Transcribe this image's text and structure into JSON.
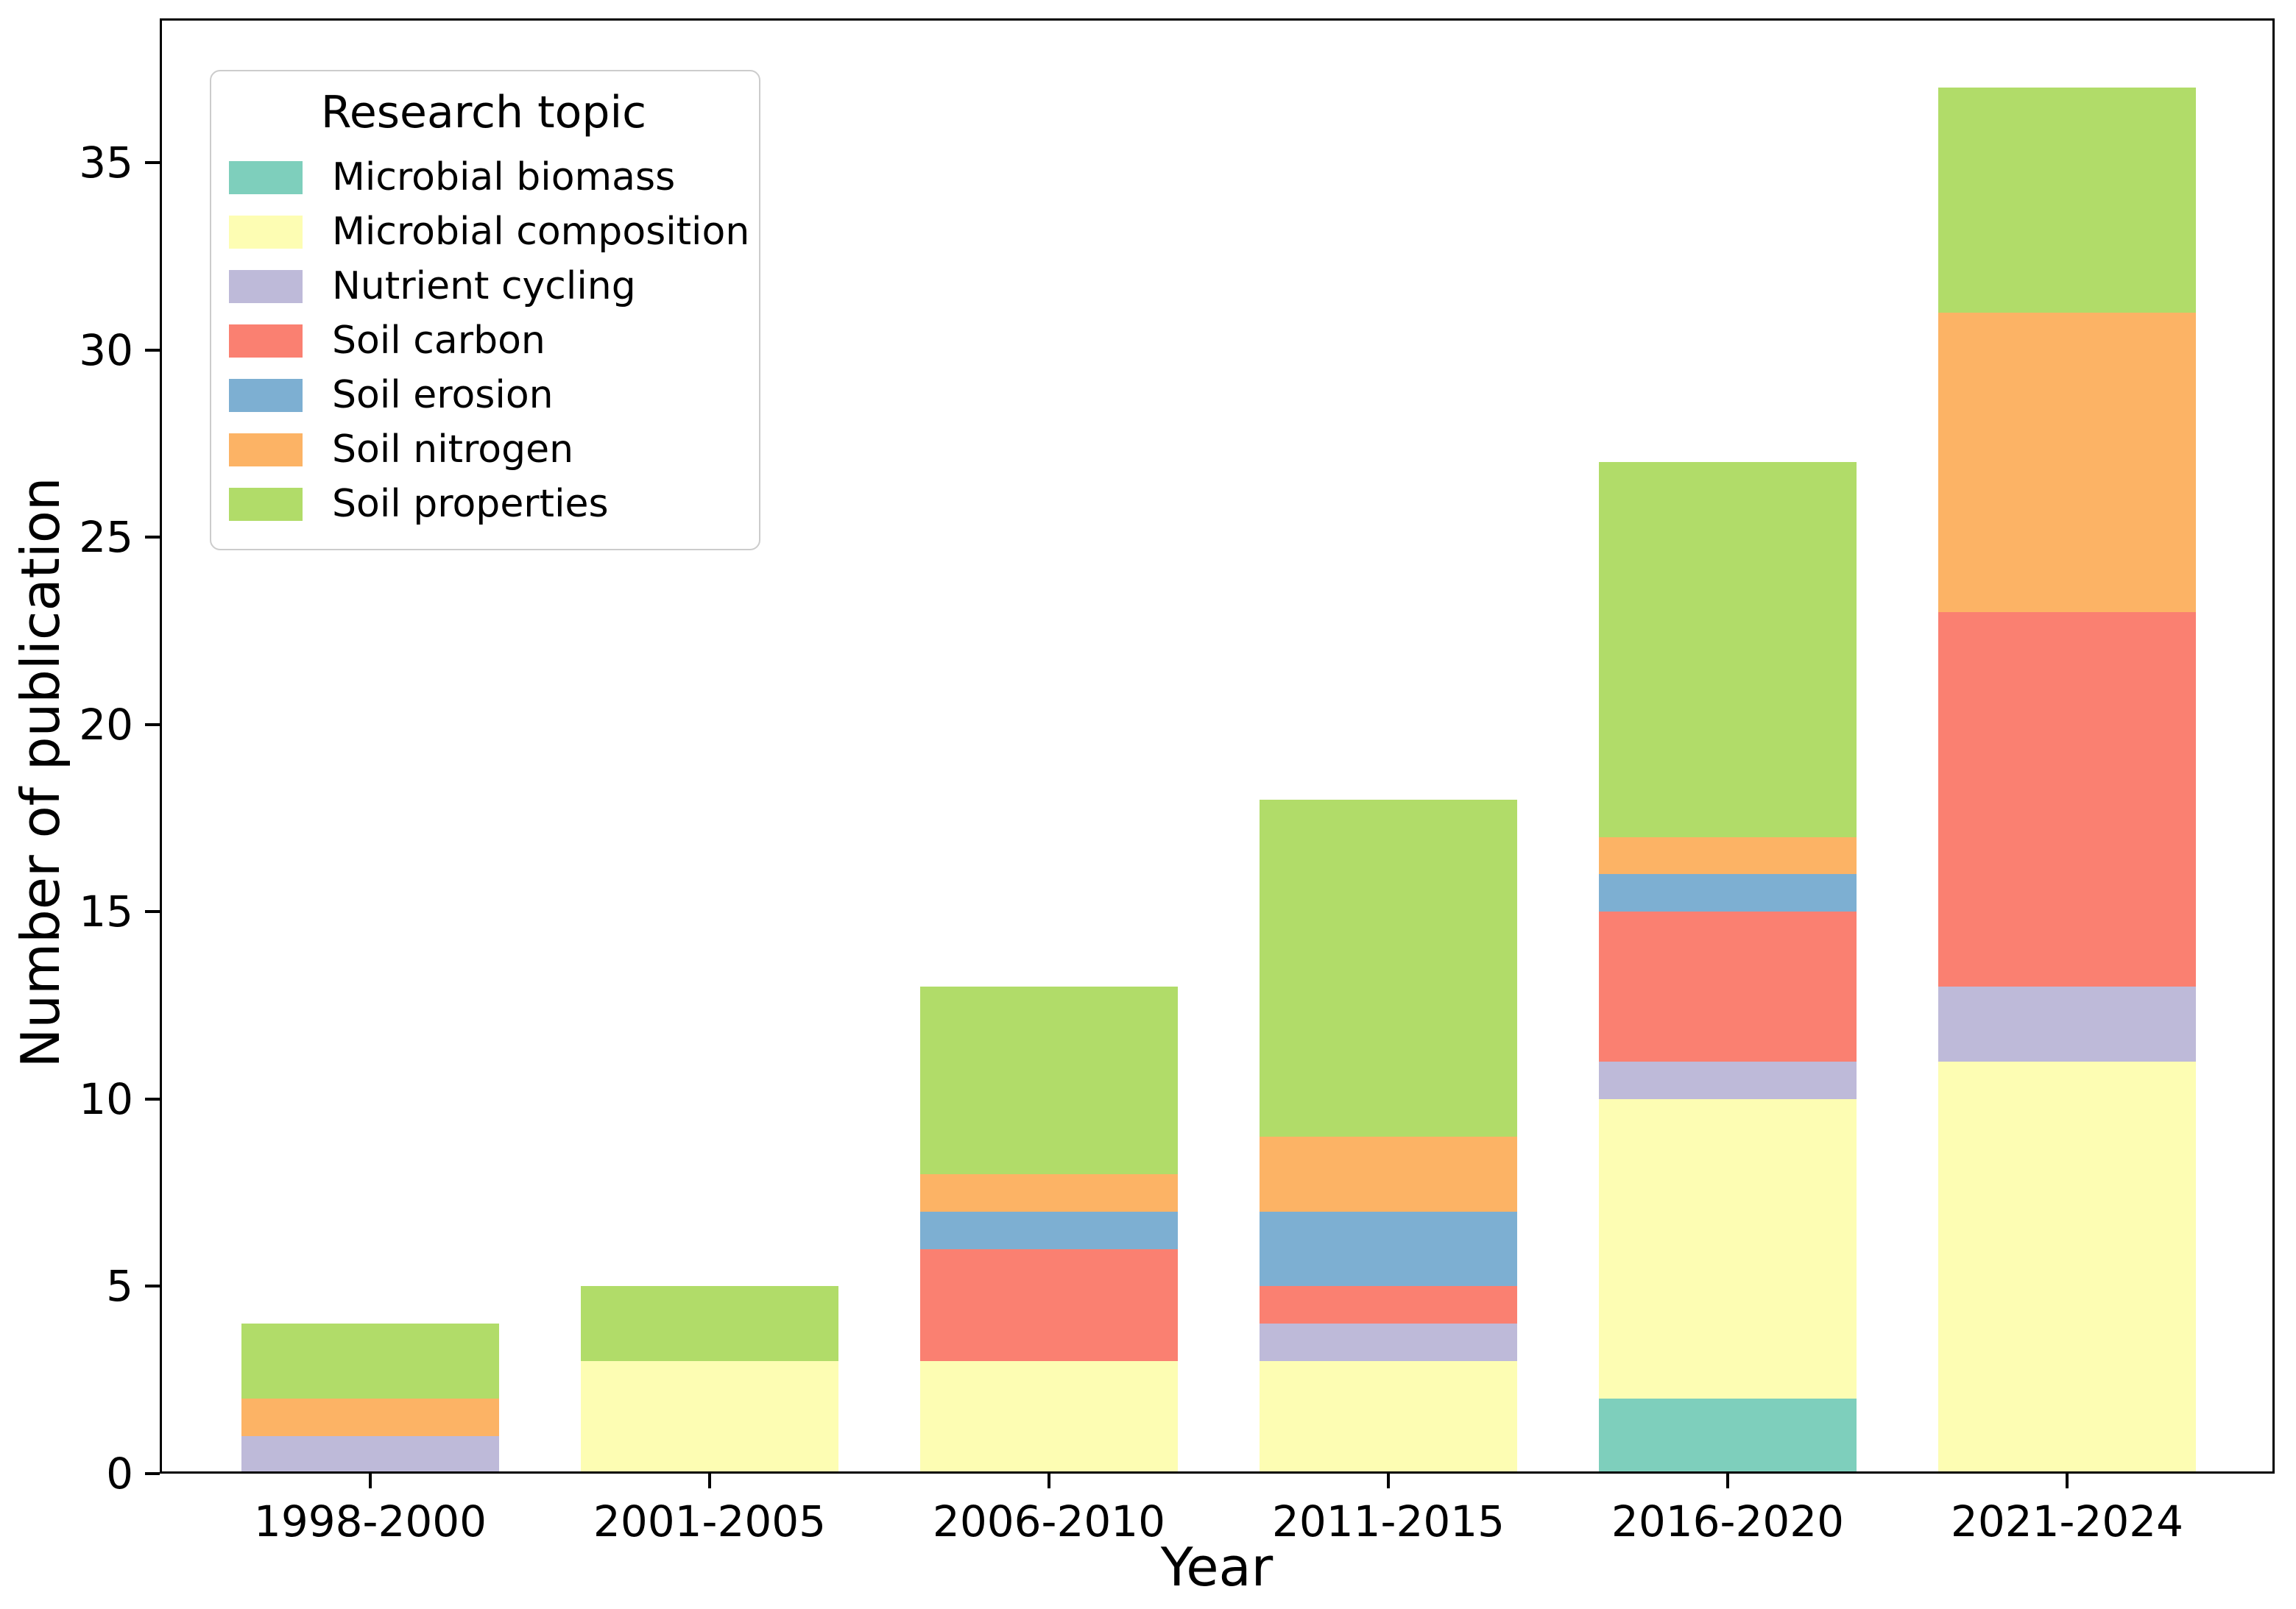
{
  "chart_data": {
    "type": "bar",
    "stacked": true,
    "title": "",
    "xlabel": "Year",
    "ylabel": "Number of publication",
    "legend_title": "Research topic",
    "legend_position": "upper left",
    "grid": false,
    "categories": [
      "1998-2000",
      "2001-2005",
      "2006-2010",
      "2011-2015",
      "2016-2020",
      "2021-2024"
    ],
    "series": [
      {
        "name": "Microbial biomass",
        "color": "#7ECFBC",
        "values": [
          0,
          0,
          0,
          0,
          2,
          0
        ]
      },
      {
        "name": "Microbial composition",
        "color": "#FDFDB3",
        "values": [
          0,
          3,
          3,
          3,
          8,
          11
        ]
      },
      {
        "name": "Nutrient cycling",
        "color": "#BEBAD9",
        "values": [
          1,
          0,
          0,
          1,
          1,
          2
        ]
      },
      {
        "name": "Soil carbon",
        "color": "#FA8071",
        "values": [
          0,
          0,
          3,
          1,
          4,
          10
        ]
      },
      {
        "name": "Soil erosion",
        "color": "#7DAFD2",
        "values": [
          0,
          0,
          1,
          2,
          1,
          0
        ]
      },
      {
        "name": "Soil nitrogen",
        "color": "#FCB365",
        "values": [
          1,
          0,
          1,
          2,
          1,
          8
        ]
      },
      {
        "name": "Soil properties",
        "color": "#B1DC69",
        "values": [
          2,
          2,
          5,
          9,
          10,
          6
        ]
      }
    ],
    "y_ticks": [
      0,
      5,
      10,
      15,
      20,
      25,
      30,
      35
    ],
    "ylim": [
      0,
      38.85
    ]
  }
}
